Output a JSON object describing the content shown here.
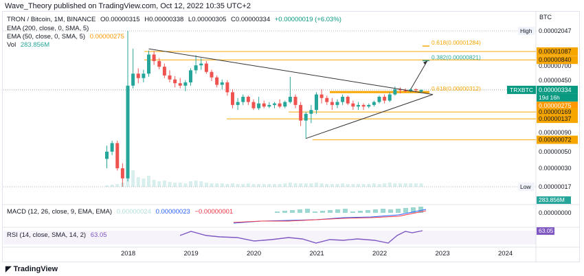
{
  "header": {
    "published": "Wave_Theory published on TradingView.com, Oct 12, 2022 10:35 UTC+2"
  },
  "legend": {
    "symbol": "TRON / Bitcoin, 1M, BINANCE",
    "open": "O0.00000315",
    "high": "H0.00000338",
    "low": "L0.00000305",
    "close": "C0.00000334",
    "change": "+0.00000019 (+6.03%)",
    "ema200": "EMA (200, close, 0, SMA, 5)",
    "ema50": "EMA (50, close, 0, SMA, 5)",
    "ema50_value": "0.00000275",
    "vol": "Vol",
    "vol_value": "283.856M"
  },
  "macd_legend": {
    "label": "MACD (12, 26, close, 9, EMA, EMA)",
    "hist": "0.00000024",
    "macd": "0.00000023",
    "signal": "−0.00000001"
  },
  "rsi_legend": {
    "label": "RSI (14, close, SMA, 14, 2)",
    "value": "63.05"
  },
  "footer": {
    "brand": "TradingView"
  },
  "colors": {
    "up": "#26a69a",
    "down": "#ef5350",
    "fib": "#f7a600",
    "ema50": "#ff9800",
    "macd_line": "#2962ff",
    "signal_line": "#f23645",
    "rsi_line": "#7e57c2",
    "rsi_badge": "#7e57c2"
  },
  "chart_data": {
    "type": "candlestick",
    "symbol": "TRXBTC",
    "currency": "BTC",
    "y_scale": "log",
    "x_ticks": [
      "2018",
      "2019",
      "2020",
      "2021",
      "2022",
      "2023",
      "2024"
    ],
    "price_ticks": [
      "0.00000700",
      "0.00000450",
      "0.00000090",
      "0.00000050",
      "0.00000030"
    ],
    "price_labels": [
      {
        "text": "0.00002047",
        "tag": "High",
        "value": 2.047e-05,
        "style": "hl"
      },
      {
        "text": "0.00001087",
        "value": 1.087e-05,
        "style": "level"
      },
      {
        "text": "0.00000840",
        "value": 8.4e-06,
        "style": "level"
      },
      {
        "text": "0.00000334",
        "tag": "TRXBTC",
        "tag2": "19d 16h",
        "value": 3.34e-06,
        "style": "current"
      },
      {
        "text": "0.00000275",
        "value": 2.75e-06,
        "style": "ema"
      },
      {
        "text": "0.00000169",
        "value": 1.69e-06,
        "style": "level"
      },
      {
        "text": "0.00000137",
        "value": 1.37e-06,
        "style": "level"
      },
      {
        "text": "0.00000072",
        "value": 7.2e-07,
        "style": "level"
      },
      {
        "text": "0.00000017",
        "tag": "Low",
        "value": 1.7e-07,
        "style": "hl"
      }
    ],
    "fib_levels": [
      {
        "label": "0.618(0.00001284)",
        "value": 1.284e-05
      },
      {
        "label": "0.382(0.00000821)",
        "value": 8.21e-06
      },
      {
        "label": "0.618(0.00000312)",
        "value": 3.12e-06
      }
    ],
    "horizontal_levels": [
      1.087e-05,
      8.4e-06,
      1.69e-06,
      1.37e-06,
      7.2e-07
    ],
    "vol_label": "283.856M",
    "macd_zero_label": "0.00000000",
    "rsi_label": "63.05"
  }
}
